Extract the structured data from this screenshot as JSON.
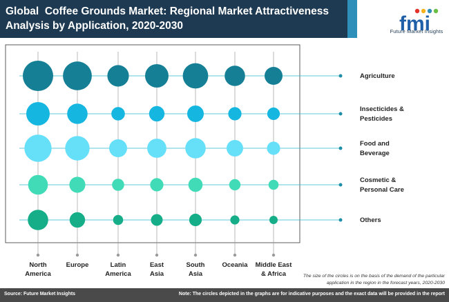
{
  "header": {
    "title_line1": "Global  Coffee Grounds Market: Regional Market Attractiveness",
    "title_line2": "Analysis by Application, 2020-2030"
  },
  "logo": {
    "text": "fmi",
    "subtitle": "Future Market Insights",
    "colors": [
      "#e4322b",
      "#f6b21b",
      "#2e8fb8",
      "#6abd45"
    ]
  },
  "chart_data": {
    "type": "bubble-matrix",
    "categories": [
      "North America",
      "Europe",
      "Latin America",
      "East Asia",
      "South Asia",
      "Oceania",
      "Middle East & Africa"
    ],
    "category_labels": [
      [
        "North",
        "America"
      ],
      [
        "Europe"
      ],
      [
        "Latin",
        "America"
      ],
      [
        "East",
        "Asia"
      ],
      [
        "South",
        "Asia"
      ],
      [
        "Oceania"
      ],
      [
        "Middle East",
        "& Africa"
      ]
    ],
    "series": [
      {
        "name": "Agriculture",
        "label_lines": [
          "Agriculture"
        ],
        "color": "#147f95",
        "values": [
          10,
          9,
          5,
          6,
          7,
          4.5,
          3.5
        ]
      },
      {
        "name": "Insecticides & Pesticides",
        "label_lines": [
          "Insecticides &",
          "Pesticides"
        ],
        "color": "#15b6df",
        "values": [
          6,
          4.5,
          2,
          2.6,
          3,
          1.9,
          1.7
        ]
      },
      {
        "name": "Food and Beverage",
        "label_lines": [
          "Food and",
          "Beverage"
        ],
        "color": "#66dff8",
        "values": [
          8,
          6.5,
          3.5,
          4,
          4.5,
          3,
          1.9
        ]
      },
      {
        "name": "Cosmetic & Personal Care",
        "label_lines": [
          "Cosmetic &",
          "Personal Care"
        ],
        "color": "#41dbb7",
        "values": [
          4.2,
          2.8,
          1.6,
          1.9,
          2.2,
          1.4,
          1.1
        ]
      },
      {
        "name": "Others",
        "label_lines": [
          "Others"
        ],
        "color": "#16ae88",
        "values": [
          4.5,
          2.6,
          1.1,
          1.5,
          1.7,
          0.9,
          0.75
        ]
      }
    ],
    "grid": false,
    "legend": "right"
  },
  "footnote": {
    "line1": "The size of the circles is on the basis of the demand of the particular",
    "line2": "application in the region in the forecast years, 2020-2030"
  },
  "footer": {
    "source": "Source: Future Market Insights",
    "note": "Note: The circles depicted in the graphs are for indicative purposes and the exact data will be provided in the report"
  }
}
